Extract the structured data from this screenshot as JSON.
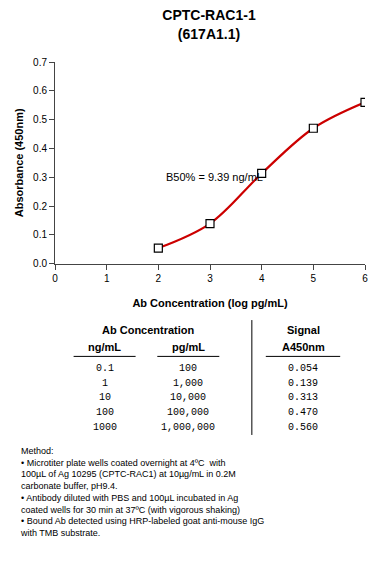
{
  "chart_data": {
    "type": "line",
    "title": "CPTC-RAC1-1",
    "subtitle": "(617A1.1)",
    "x_label": "Ab Concentration (log pg/mL)",
    "y_label": "Absorbance (450nm)",
    "x": [
      2,
      3,
      4,
      5,
      6
    ],
    "values": [
      0.054,
      0.139,
      0.313,
      0.47,
      0.56
    ],
    "color": "#cc0000",
    "marker": "square",
    "line_style": "solid",
    "xlim": [
      0,
      6
    ],
    "ylim": [
      0,
      0.7
    ],
    "xticks": [
      0,
      1,
      2,
      3,
      4,
      5,
      6
    ],
    "yticks": [
      {
        "value": 0,
        "label": "0.0"
      },
      0.1,
      0.2,
      0.3,
      0.4,
      0.5,
      0.6,
      0.7
    ],
    "grid": false,
    "annotations": [
      {
        "text": "B50% = 9.39 ng/mL",
        "x": 2.1,
        "y": 0.3
      }
    ],
    "table": {
      "headers": [
        "Ab Concentration",
        "Signal"
      ],
      "subheaders": [
        "ng/mL",
        "pg/mL",
        "A450nm"
      ],
      "columns": [
        [
          "0.1",
          "1",
          "10",
          "100",
          "1000"
        ],
        [
          "100",
          "1,000",
          "10,000",
          "100,000",
          "1,000,000"
        ],
        [
          "0.054",
          "0.139",
          "0.313",
          "0.470",
          "0.560"
        ]
      ]
    },
    "note": "Method:\n• Microtiter plate wells coated overnight at 4ºC  with\n100µL of Ag 10295 (CPTC-RAC1) at 10µg/mL in 0.2M\ncarbonate buffer, pH9.4.\n• Antibody diluted with PBS and 100µL incubated in Ag\ncoated wells for 30 min at 37ºC (with vigorous shaking)\n• Bound Ab detected using HRP-labeled goat anti-mouse IgG\nwith TMB substrate."
  }
}
